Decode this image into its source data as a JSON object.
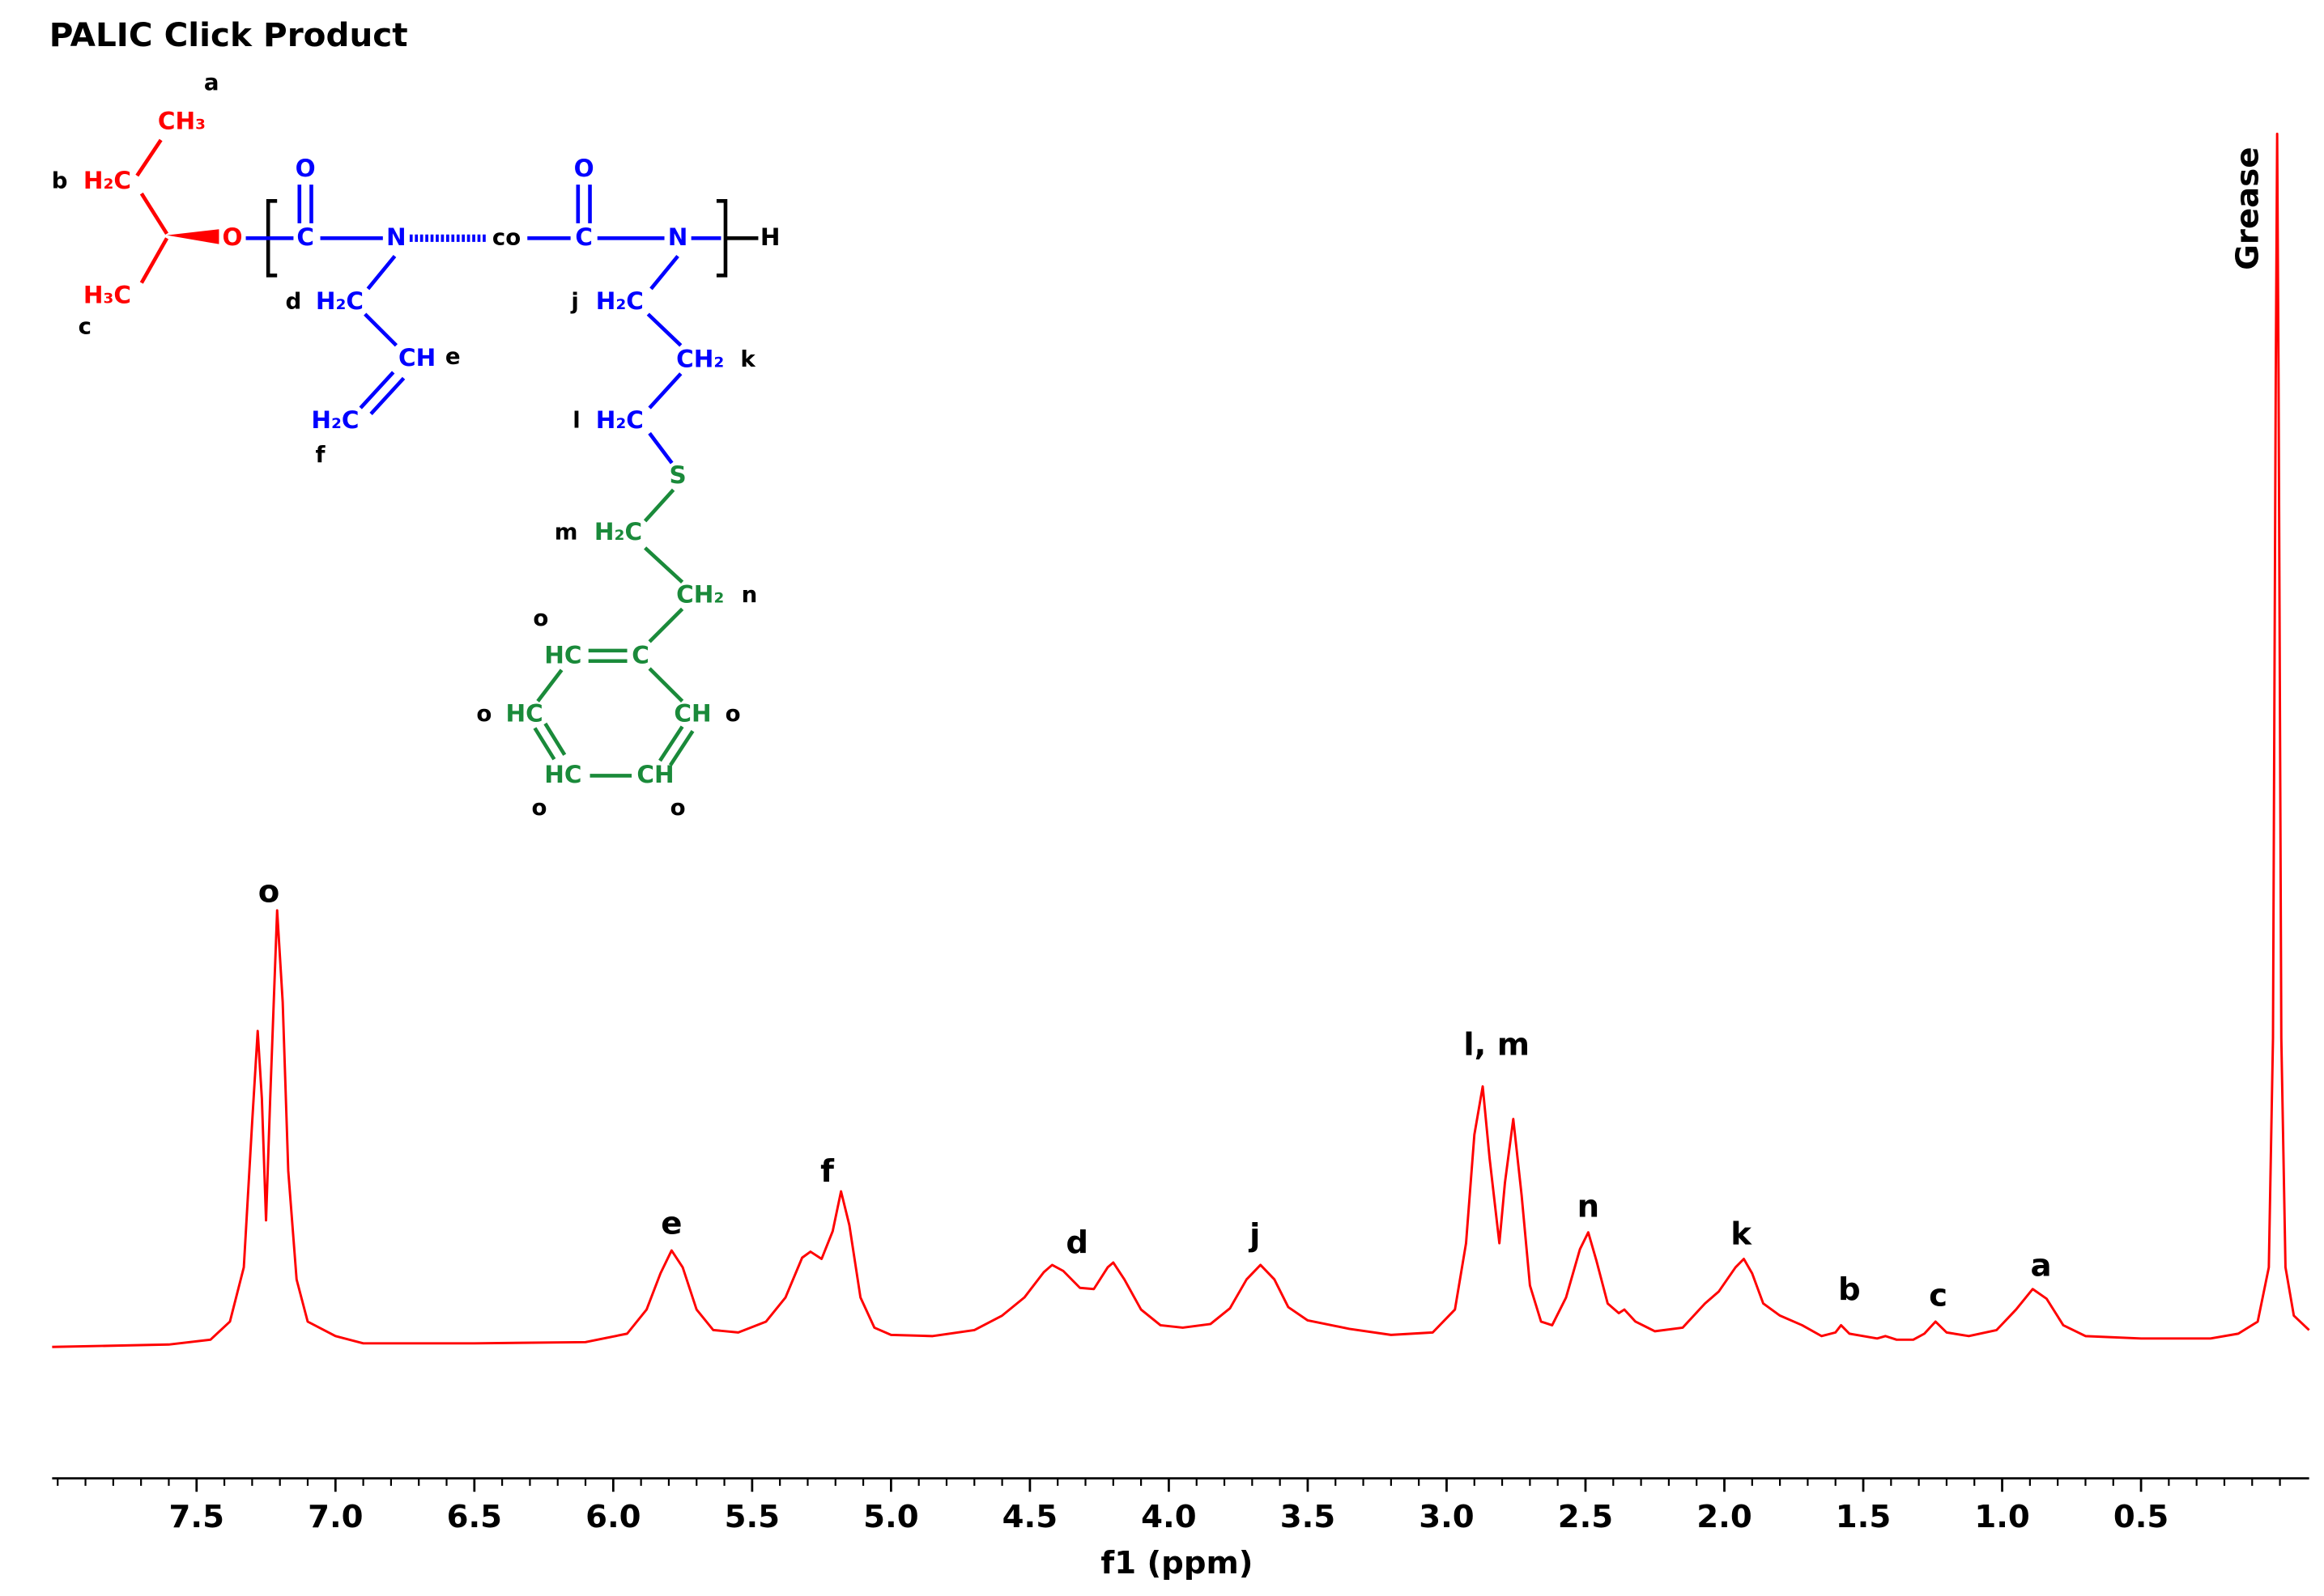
{
  "chart_data": {
    "type": "line",
    "title": "PALIC Click Product",
    "xlabel": "f1 (ppm)",
    "color": "#ff0000",
    "x": [
      8.02,
      7.6,
      7.45,
      7.38,
      7.33,
      7.3,
      7.28,
      7.265,
      7.25,
      7.235,
      7.21,
      7.19,
      7.17,
      7.14,
      7.1,
      7.0,
      6.9,
      6.5,
      6.1,
      5.95,
      5.88,
      5.83,
      5.79,
      5.75,
      5.7,
      5.64,
      5.55,
      5.45,
      5.38,
      5.32,
      5.29,
      5.25,
      5.21,
      5.18,
      5.15,
      5.11,
      5.06,
      5.0,
      4.85,
      4.7,
      4.6,
      4.52,
      4.45,
      4.42,
      4.38,
      4.32,
      4.27,
      4.22,
      4.2,
      4.16,
      4.1,
      4.03,
      3.95,
      3.85,
      3.78,
      3.72,
      3.67,
      3.62,
      3.57,
      3.5,
      3.35,
      3.2,
      3.05,
      2.97,
      2.93,
      2.9,
      2.87,
      2.845,
      2.81,
      2.79,
      2.76,
      2.73,
      2.7,
      2.66,
      2.62,
      2.57,
      2.52,
      2.49,
      2.46,
      2.42,
      2.38,
      2.36,
      2.32,
      2.25,
      2.15,
      2.07,
      2.02,
      1.96,
      1.93,
      1.9,
      1.86,
      1.8,
      1.72,
      1.65,
      1.6,
      1.58,
      1.55,
      1.45,
      1.42,
      1.38,
      1.32,
      1.28,
      1.24,
      1.2,
      1.12,
      1.02,
      0.95,
      0.89,
      0.84,
      0.78,
      0.7,
      0.5,
      0.25,
      0.15,
      0.08,
      0.04,
      0.025,
      0.015,
      0.01,
      0.005,
      -0.005,
      -0.02,
      -0.05,
      -0.105
    ],
    "values": [
      -0.6,
      -0.4,
      0,
      1.5,
      6,
      18,
      25.6,
      20,
      9.9,
      20,
      35.6,
      28,
      14,
      5,
      1.5,
      0.3,
      -0.3,
      -0.3,
      -0.2,
      0.5,
      2.5,
      5.5,
      7.4,
      6,
      2.5,
      0.8,
      0.6,
      1.5,
      3.5,
      6.8,
      7.3,
      6.7,
      9,
      12.3,
      9.5,
      3.5,
      1,
      0.4,
      0.3,
      0.8,
      2,
      3.5,
      5.6,
      6.2,
      5.7,
      4.3,
      4.2,
      6,
      6.4,
      5,
      2.5,
      1.2,
      1,
      1.3,
      2.6,
      5,
      6.2,
      5,
      2.7,
      1.6,
      0.9,
      0.4,
      0.6,
      2.5,
      8,
      17,
      21,
      15,
      8,
      13,
      18.3,
      12,
      4.5,
      1.5,
      1.2,
      3.5,
      7.5,
      8.9,
      6.5,
      3,
      2.2,
      2.5,
      1.5,
      0.7,
      1,
      3,
      4,
      6,
      6.7,
      5.5,
      3,
      2,
      1.2,
      0.3,
      0.6,
      1.2,
      0.5,
      0.1,
      0.3,
      0,
      0,
      0.5,
      1.5,
      0.6,
      0.3,
      0.8,
      2.5,
      4.2,
      3.4,
      1.2,
      0.3,
      0.1,
      0.1,
      0.5,
      1.5,
      6,
      25,
      80,
      100,
      80,
      25,
      6,
      2,
      0.8
    ],
    "xlim": [
      8.02,
      -0.105
    ],
    "ylim": [
      -11.5,
      100.6
    ],
    "xticks": [
      7.5,
      {
        "value": 7,
        "label": "7.0"
      },
      6.5,
      {
        "value": 6,
        "label": "6.0"
      },
      5.5,
      {
        "value": 5,
        "label": "5.0"
      },
      4.5,
      {
        "value": 4,
        "label": "4.0"
      },
      3.5,
      {
        "value": 3,
        "label": "3.0"
      },
      2.5,
      {
        "value": 2,
        "label": "2.0"
      },
      1.5,
      {
        "value": 1,
        "label": "1.0"
      },
      0.5
    ],
    "xminorticks": [
      8.0,
      7.9,
      7.8,
      7.7,
      7.6,
      7.5,
      7.4,
      7.3,
      7.2,
      7.1,
      7.0,
      6.9,
      6.8,
      6.7,
      6.6,
      6.5,
      6.4,
      6.3,
      6.2,
      6.1,
      6.0,
      5.9,
      5.8,
      5.7,
      5.6,
      5.5,
      5.4,
      5.3,
      5.2,
      5.1,
      5.0,
      4.9,
      4.8,
      4.7,
      4.6,
      4.5,
      4.4,
      4.3,
      4.2,
      4.1,
      4.0,
      3.9,
      3.8,
      3.7,
      3.6,
      3.5,
      3.4,
      3.3,
      3.2,
      3.1,
      3.0,
      2.9,
      2.8,
      2.7,
      2.6,
      2.5,
      2.4,
      2.3,
      2.2,
      2.1,
      2.0,
      1.9,
      1.8,
      1.7,
      1.6,
      1.5,
      1.4,
      1.3,
      1.2,
      1.1,
      1.0,
      0.9,
      0.8,
      0.7,
      0.6,
      0.5,
      0.4,
      0.3,
      0.2,
      0.1,
      0.0
    ],
    "annotations": [
      {
        "text": "o",
        "x": 7.24,
        "y": 37
      },
      {
        "text": "e",
        "x": 5.79,
        "y": 9.5
      },
      {
        "text": "f",
        "x": 5.23,
        "y": 13.8
      },
      {
        "text": "d",
        "x": 4.33,
        "y": 7.9
      },
      {
        "text": "j",
        "x": 3.69,
        "y": 8.5
      },
      {
        "text": "l, m",
        "x": 2.82,
        "y": 24.3
      },
      {
        "text": "n",
        "x": 2.49,
        "y": 10.9
      },
      {
        "text": "k",
        "x": 1.94,
        "y": 8.6
      },
      {
        "text": "b",
        "x": 1.55,
        "y": 4
      },
      {
        "text": "c",
        "x": 1.23,
        "y": 3.5
      },
      {
        "text": "a",
        "x": 0.86,
        "y": 6
      },
      {
        "text": "Grease",
        "x": 0.11,
        "y": 93.8,
        "rotation": -90
      }
    ]
  },
  "structure": [
    "a",
    "CH₃",
    "b",
    "H₂C",
    "H₃C",
    "c",
    "O",
    "O",
    "C",
    "N",
    "co",
    "O",
    "C",
    "N",
    "H",
    "d",
    "H₂C",
    "CH",
    "e",
    "H₂C",
    "f",
    "j",
    "H₂C",
    "CH₂",
    "k",
    "l",
    "H₂C",
    "S",
    "m",
    "H₂C",
    "CH₂",
    "n",
    "o",
    "HC",
    "C",
    "o",
    "HC",
    "CH",
    "o",
    "HC",
    "CH",
    "o",
    "o"
  ]
}
